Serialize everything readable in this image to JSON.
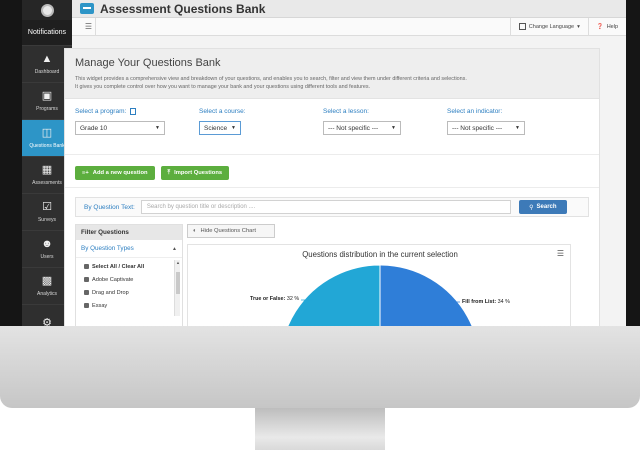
{
  "sidebar": {
    "notifications": "Notifications",
    "items": [
      {
        "label": "Dashboard",
        "icon": "dashboard-icon"
      },
      {
        "label": "Programs",
        "icon": "book-icon"
      },
      {
        "label": "Questions Bank",
        "icon": "bank-icon",
        "active": true
      },
      {
        "label": "Assessments",
        "icon": "assessment-icon"
      },
      {
        "label": "Surveys",
        "icon": "check-icon"
      },
      {
        "label": "Users",
        "icon": "users-icon"
      },
      {
        "label": "Analytics",
        "icon": "chart-icon"
      },
      {
        "label": "",
        "icon": "gear-icon"
      }
    ]
  },
  "header": {
    "title": "Assessment Questions Bank",
    "change_language": "Change Language",
    "help": "Help"
  },
  "panel": {
    "title": "Manage Your Questions Bank",
    "description_line1": "This widget provides a comprehensive view and breakdown of your questions, and enables you to search, filter and view them under different criteria and selections.",
    "description_line2": "It gives you complete control over how you want to manage your bank and your questions using different tools and features."
  },
  "selectors": {
    "program": {
      "label": "Select a program:",
      "value": "Grade 10"
    },
    "course": {
      "label": "Select a course:",
      "value": "Science"
    },
    "lesson": {
      "label": "Select a lesson:",
      "value": "--- Not specific ---"
    },
    "indicator": {
      "label": "Select an indicator:",
      "value": "--- Not specific ---"
    }
  },
  "actions": {
    "add_question": "Add a new question",
    "import_questions": "Import Questions"
  },
  "search": {
    "label": "By Question Text:",
    "placeholder": "Search by question title or description ....",
    "button": "Search"
  },
  "filters": {
    "title": "Filter Questions",
    "section": "By Question Types",
    "items": [
      "Select All / Clear All",
      "Adobe Captivate",
      "Drag and Drop",
      "Essay"
    ]
  },
  "chart_controls": {
    "hide_button": "Hide Questions Chart"
  },
  "chart_data": {
    "type": "pie",
    "title": "Questions distribution in the current selection",
    "slices": [
      {
        "name": "True or False:",
        "value": 32,
        "display": "32 %",
        "color": "#22a7d6"
      },
      {
        "name": "Fill from List:",
        "value": 34,
        "display": "34 %",
        "color": "#2f7ed8"
      }
    ],
    "colors": {
      "true_false": "#22a7d6",
      "fill_list": "#2f7ed8"
    }
  },
  "colors": {
    "accent": "#2d95c7",
    "sidebar": "#2f2f2f",
    "green_button": "#5cae3e",
    "search_button": "#3d7ab8"
  }
}
